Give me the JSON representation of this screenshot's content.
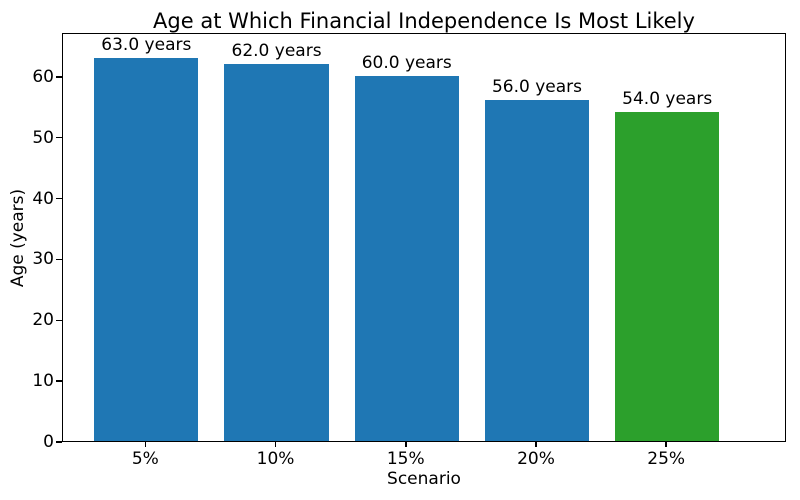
{
  "chart_data": {
    "type": "bar",
    "title": "Age at Which Financial Independence Is Most Likely",
    "xlabel": "Scenario",
    "ylabel": "Age (years)",
    "categories": [
      "5%",
      "10%",
      "15%",
      "20%",
      "25%"
    ],
    "values": [
      63.0,
      62.0,
      60.0,
      56.0,
      54.0
    ],
    "bar_labels": [
      "63.0 years",
      "62.0 years",
      "60.0 years",
      "56.0 years",
      "54.0 years"
    ],
    "bar_colors": [
      "#1f77b4",
      "#1f77b4",
      "#1f77b4",
      "#1f77b4",
      "#2ca02c"
    ],
    "yticks": [
      0,
      10,
      20,
      30,
      40,
      50,
      60
    ],
    "ylim": [
      0,
      67.2
    ],
    "grid": false,
    "legend_position": "none",
    "colors": {
      "bar_blue": "#1f77b4",
      "bar_green": "#2ca02c",
      "text": "#000000",
      "background": "#ffffff"
    }
  }
}
